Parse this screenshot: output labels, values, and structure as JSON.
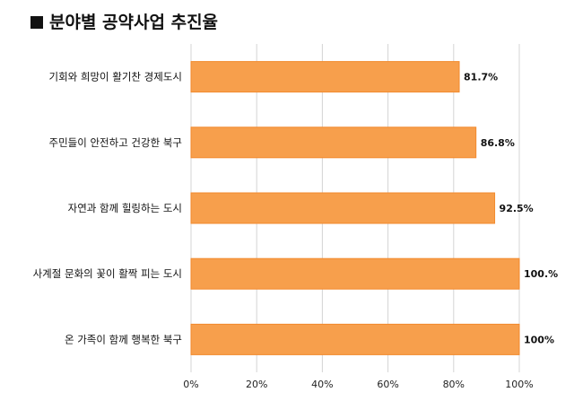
{
  "chart_data": {
    "type": "bar",
    "orientation": "horizontal",
    "title": "분야별 공약사업 추진율",
    "categories": [
      "기회와 희망이 활기찬 경제도시",
      "주민들이 안전하고 건강한 북구",
      "자연과 함께 힐링하는 도시",
      "사계절 문화의 꽃이 활짝 피는 도시",
      "온 가족이 함께 행복한 북구"
    ],
    "values": [
      81.7,
      86.8,
      92.5,
      100,
      100
    ],
    "value_labels": [
      "81.7%",
      "86.8%",
      "92.5%",
      "100.%",
      "100%"
    ],
    "xlim": [
      0,
      100
    ],
    "ticks": [
      "0%",
      "20%",
      "40%",
      "60%",
      "80%",
      "100%"
    ],
    "grid": true,
    "bar_color": "#f79f4c",
    "bar_edge_color": "#f28a2e"
  }
}
